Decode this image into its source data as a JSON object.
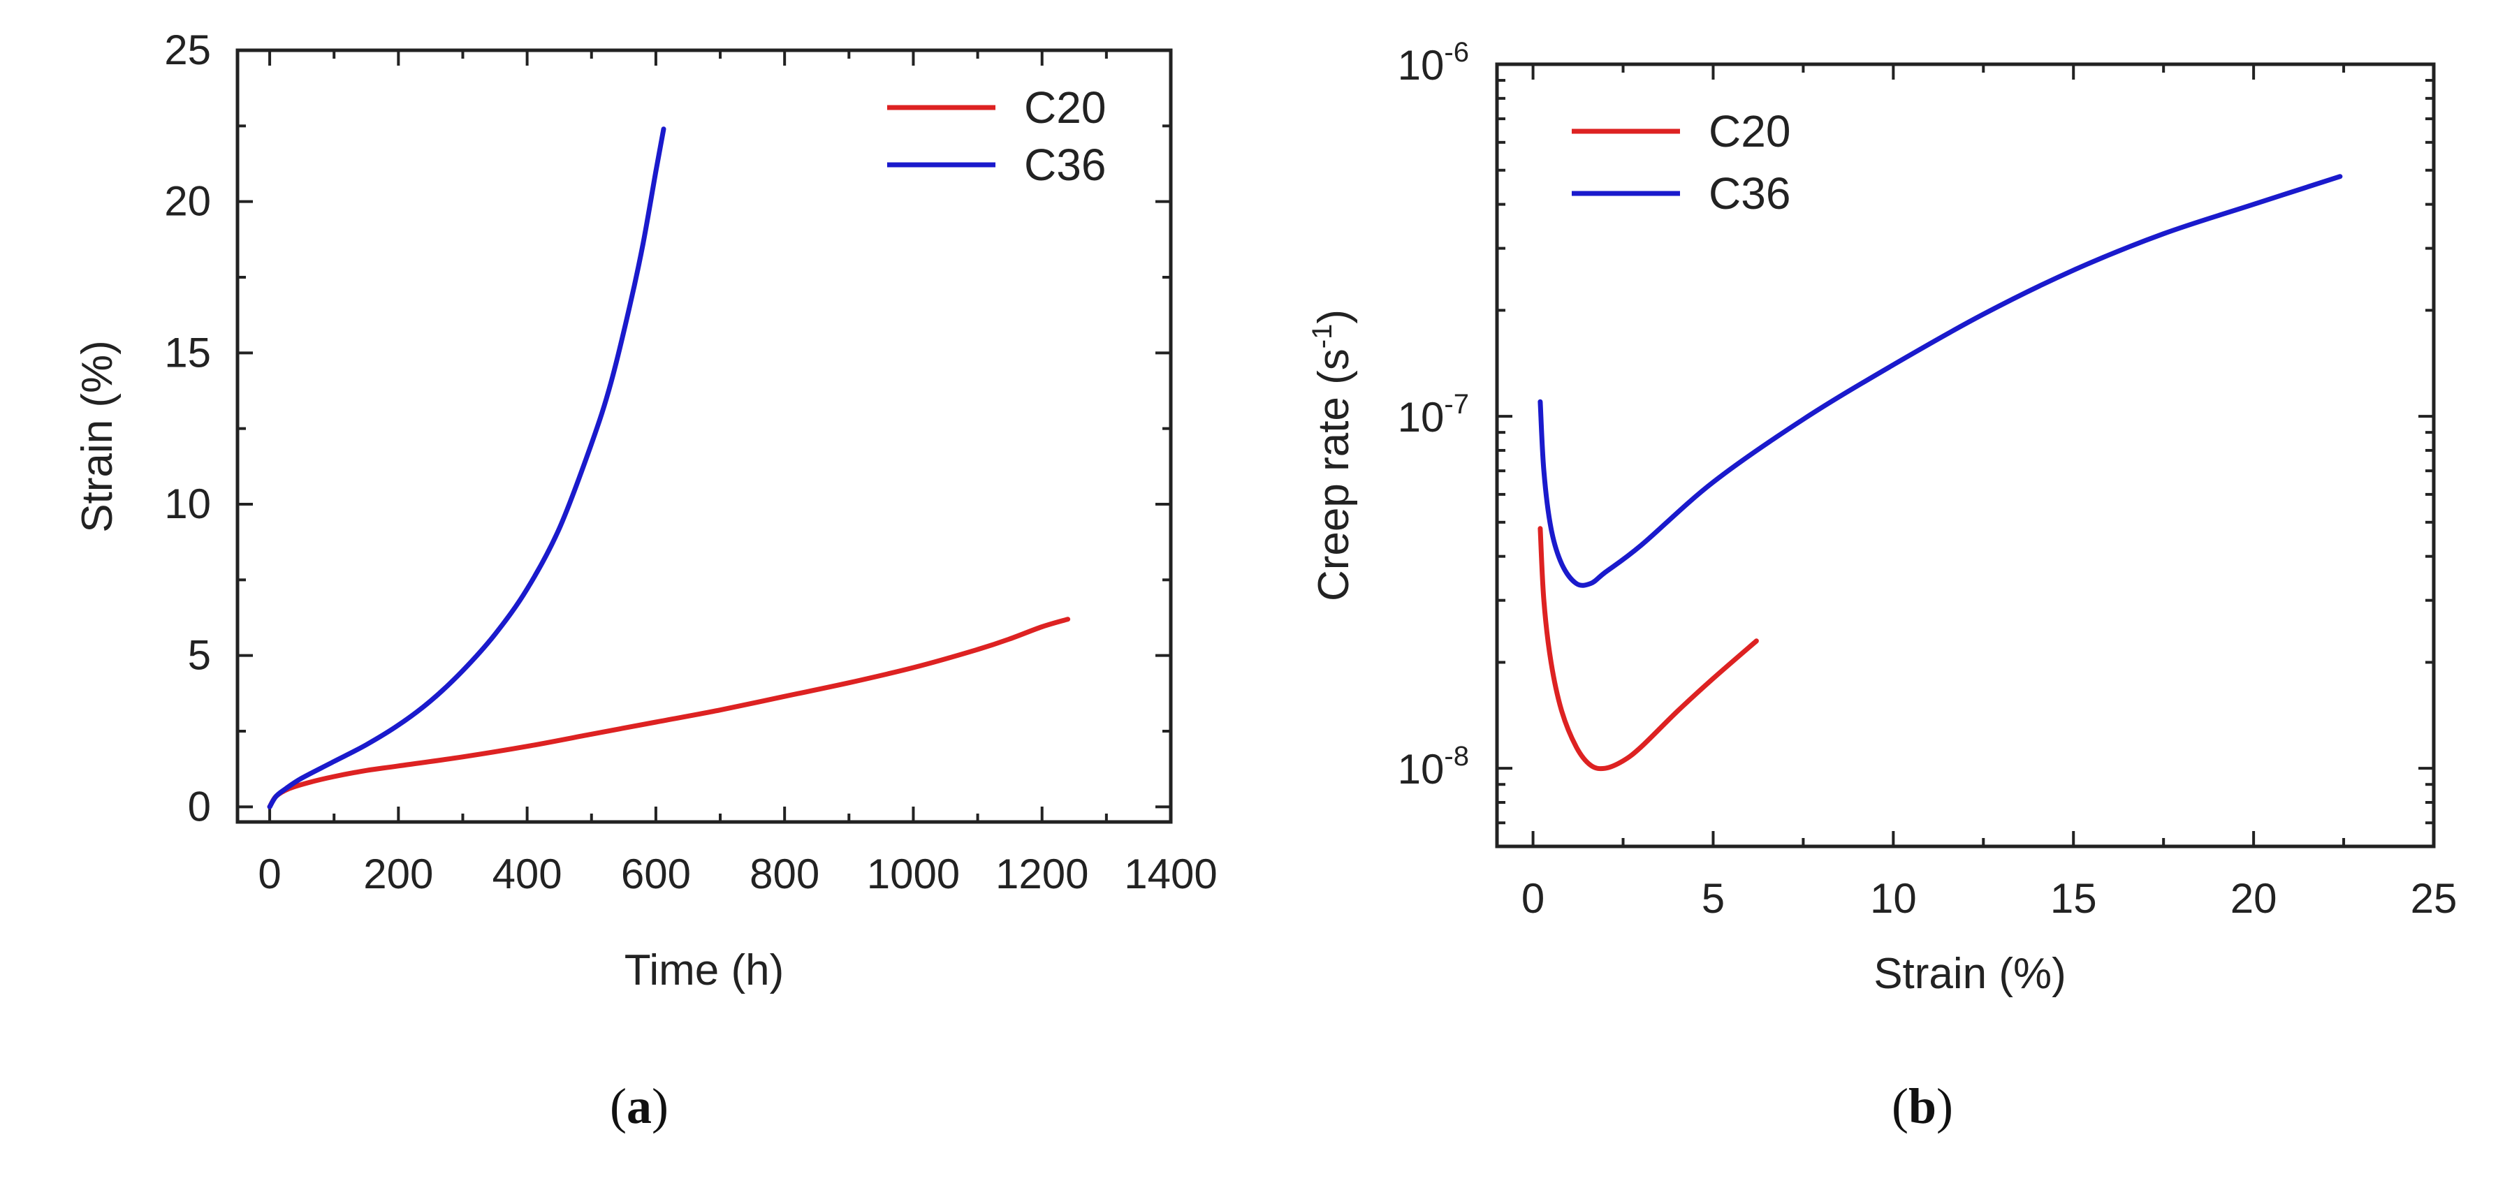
{
  "chart_data": [
    {
      "type": "line",
      "panel_label": "a",
      "xlabel": "Time (h)",
      "ylabel": "Strain (%)",
      "xlim": [
        -50,
        1400
      ],
      "ylim": [
        -0.5,
        25
      ],
      "xticks": [
        0,
        200,
        400,
        600,
        800,
        1000,
        1200,
        1400
      ],
      "yticks": [
        0,
        5,
        10,
        15,
        20,
        25
      ],
      "yscale": "linear",
      "legend_position": "top-right",
      "series": [
        {
          "name": "C20",
          "color": "#dd2222",
          "x": [
            0,
            10,
            30,
            60,
            100,
            150,
            200,
            300,
            400,
            500,
            600,
            700,
            800,
            900,
            1000,
            1100,
            1150,
            1200,
            1240
          ],
          "y": [
            0.0,
            0.35,
            0.6,
            0.8,
            1.0,
            1.2,
            1.35,
            1.65,
            2.0,
            2.4,
            2.8,
            3.2,
            3.65,
            4.1,
            4.6,
            5.2,
            5.55,
            5.95,
            6.2
          ]
        },
        {
          "name": "C36",
          "color": "#1a1acc",
          "x": [
            0,
            10,
            25,
            50,
            100,
            150,
            200,
            250,
            300,
            350,
            400,
            450,
            500,
            530,
            560,
            580,
            600,
            612
          ],
          "y": [
            0.0,
            0.35,
            0.6,
            0.95,
            1.5,
            2.05,
            2.7,
            3.5,
            4.5,
            5.7,
            7.2,
            9.2,
            12.0,
            14.0,
            16.6,
            18.6,
            21.0,
            22.4
          ]
        }
      ]
    },
    {
      "type": "line",
      "panel_label": "b",
      "xlabel": "Strain (%)",
      "ylabel": "Creep rate (s",
      "ylabel_superscript": "-1",
      "ylabel_suffix": ")",
      "xlim": [
        -1,
        25
      ],
      "ylim": [
        6e-09,
        1e-06
      ],
      "xticks": [
        0,
        5,
        10,
        15,
        20,
        25
      ],
      "yscale": "log",
      "yticks": [
        {
          "value": 1e-08,
          "base": "10",
          "exp": "-8"
        },
        {
          "value": 1e-07,
          "base": "10",
          "exp": "-7"
        },
        {
          "value": 1e-06,
          "base": "10",
          "exp": "-6"
        }
      ],
      "legend_position": "top-left",
      "series": [
        {
          "name": "C20",
          "color": "#dd2222",
          "x": [
            0.2,
            0.3,
            0.5,
            0.8,
            1.2,
            1.6,
            2.0,
            2.5,
            3.0,
            4.0,
            5.0,
            6.2
          ],
          "y": [
            4.8e-08,
            3e-08,
            2e-08,
            1.45e-08,
            1.15e-08,
            1.02e-08,
            1e-08,
            1.05e-08,
            1.15e-08,
            1.45e-08,
            1.8e-08,
            2.3e-08
          ]
        },
        {
          "name": "C36",
          "color": "#1a1acc",
          "x": [
            0.2,
            0.3,
            0.5,
            0.8,
            1.2,
            1.6,
            2.0,
            3.0,
            5.0,
            7.5,
            10.0,
            12.5,
            15.0,
            17.5,
            20.0,
            22.4
          ],
          "y": [
            1.1e-07,
            7e-08,
            4.8e-08,
            3.8e-08,
            3.35e-08,
            3.35e-08,
            3.6e-08,
            4.3e-08,
            6.5e-08,
            9.8e-08,
            1.4e-07,
            1.95e-07,
            2.6e-07,
            3.3e-07,
            4e-07,
            4.8e-07
          ]
        }
      ]
    }
  ]
}
